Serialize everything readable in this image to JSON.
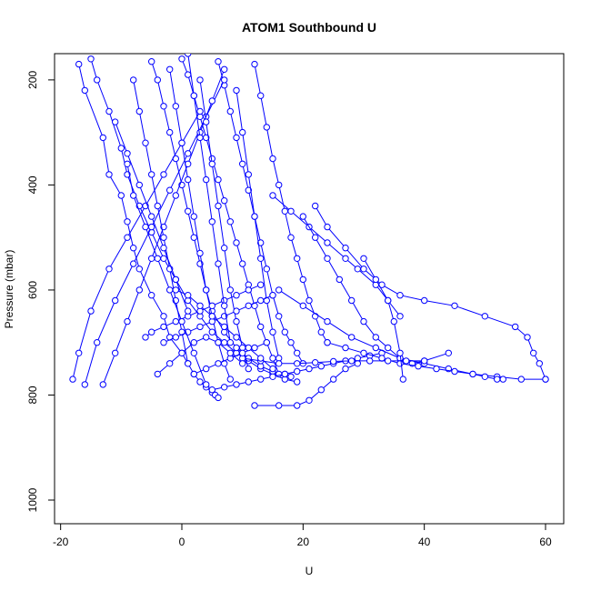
{
  "chart_data": {
    "type": "line",
    "title": "ATOM1 Southbound U",
    "xlabel": "U",
    "ylabel": "Pressure (mbar)",
    "xlim": [
      -21,
      63
    ],
    "ylim": [
      1045,
      150
    ],
    "y_reversed": true,
    "xticks": [
      -20,
      0,
      20,
      40,
      60
    ],
    "yticks": [
      200,
      400,
      600,
      800,
      1000
    ],
    "grid": false,
    "legend": "none",
    "line_color": "#0000ff",
    "marker": "open-circle",
    "series": [
      {
        "x": [
          -17,
          -16,
          -13,
          -12,
          -10,
          -9,
          -8,
          -7,
          -5,
          -3,
          -2,
          0,
          1,
          2,
          3,
          4,
          5,
          5.5,
          6
        ],
        "y": [
          170,
          220,
          310,
          380,
          420,
          470,
          520,
          560,
          610,
          650,
          690,
          720,
          740,
          760,
          775,
          785,
          795,
          800,
          805
        ]
      },
      {
        "x": [
          -15,
          -14,
          -12,
          -10,
          -9,
          -7,
          -5,
          -3,
          -1,
          1,
          3,
          5,
          7,
          9,
          11,
          13,
          15,
          17,
          19
        ],
        "y": [
          160,
          200,
          260,
          330,
          380,
          440,
          490,
          540,
          580,
          620,
          650,
          680,
          700,
          720,
          735,
          750,
          760,
          770,
          775
        ]
      },
      {
        "x": [
          -5,
          -4,
          -3,
          -2,
          -1,
          0,
          1,
          2,
          3,
          4,
          5,
          7,
          9,
          11,
          13,
          15,
          17,
          18
        ],
        "y": [
          165,
          200,
          250,
          300,
          350,
          400,
          450,
          500,
          550,
          600,
          640,
          680,
          710,
          730,
          745,
          755,
          760,
          765
        ]
      },
      {
        "x": [
          0,
          1,
          2,
          3,
          4,
          5,
          6,
          7,
          8,
          9,
          10,
          11,
          12,
          13,
          14,
          15,
          16
        ],
        "y": [
          160,
          190,
          230,
          270,
          310,
          350,
          390,
          430,
          470,
          510,
          550,
          590,
          630,
          670,
          700,
          730,
          760
        ]
      },
      {
        "x": [
          6,
          7,
          8,
          9,
          10,
          11,
          12,
          13,
          14,
          15,
          16,
          17,
          18,
          19,
          20
        ],
        "y": [
          165,
          210,
          260,
          310,
          360,
          410,
          460,
          510,
          560,
          610,
          650,
          680,
          700,
          720,
          740
        ]
      },
      {
        "x": [
          12,
          13,
          14,
          15,
          16,
          17,
          18,
          19,
          20,
          21,
          22,
          23,
          24
        ],
        "y": [
          170,
          230,
          290,
          350,
          400,
          450,
          500,
          540,
          580,
          620,
          650,
          680,
          700
        ]
      },
      {
        "x": [
          -18,
          -17,
          -15,
          -12,
          -9,
          -6,
          -3,
          0,
          3
        ],
        "y": [
          770,
          720,
          640,
          560,
          500,
          440,
          380,
          320,
          260
        ]
      },
      {
        "x": [
          -16,
          -14,
          -11,
          -8,
          -5,
          -2,
          1,
          4,
          7
        ],
        "y": [
          780,
          700,
          620,
          550,
          480,
          410,
          340,
          270,
          200
        ]
      },
      {
        "x": [
          -13,
          -11,
          -9,
          -7,
          -5,
          -3,
          -1,
          1,
          3,
          5,
          7
        ],
        "y": [
          780,
          720,
          660,
          600,
          540,
          480,
          420,
          360,
          300,
          240,
          180
        ]
      },
      {
        "x": [
          -8,
          -7,
          -6,
          -5,
          -4,
          -3,
          -2,
          -1,
          0,
          1
        ],
        "y": [
          200,
          260,
          320,
          380,
          440,
          500,
          560,
          620,
          680,
          740
        ]
      },
      {
        "x": [
          -2,
          -1,
          0,
          1,
          2,
          3,
          4,
          5,
          6,
          7,
          8
        ],
        "y": [
          180,
          250,
          320,
          390,
          460,
          530,
          600,
          650,
          700,
          740,
          770
        ]
      },
      {
        "x": [
          3,
          4,
          5,
          6,
          7,
          8,
          9,
          10,
          11
        ],
        "y": [
          200,
          280,
          360,
          440,
          520,
          600,
          660,
          710,
          750
        ]
      },
      {
        "x": [
          9,
          10,
          11,
          12,
          13,
          14,
          15,
          16
        ],
        "y": [
          220,
          300,
          380,
          460,
          540,
          620,
          680,
          730
        ]
      },
      {
        "x": [
          -6,
          -5,
          -3,
          -1,
          1,
          3,
          5,
          7,
          9,
          11,
          13
        ],
        "y": [
          690,
          680,
          670,
          660,
          650,
          640,
          630,
          620,
          610,
          600,
          590
        ]
      },
      {
        "x": [
          -3,
          -1,
          1,
          3,
          5,
          7,
          9,
          11,
          13,
          15
        ],
        "y": [
          700,
          690,
          680,
          670,
          660,
          650,
          640,
          630,
          620,
          610
        ]
      },
      {
        "x": [
          5,
          7,
          9,
          11,
          13,
          15,
          17,
          19,
          21,
          23,
          25,
          27,
          29,
          31,
          33
        ],
        "y": [
          790,
          785,
          780,
          775,
          770,
          765,
          760,
          755,
          750,
          745,
          740,
          735,
          730,
          725,
          720
        ]
      },
      {
        "x": [
          12,
          16,
          19,
          21,
          23,
          25,
          27,
          29
        ],
        "y": [
          820,
          820,
          820,
          810,
          790,
          770,
          750,
          740
        ]
      },
      {
        "x": [
          15,
          18,
          21,
          24,
          27,
          29,
          32,
          34,
          36
        ],
        "y": [
          420,
          450,
          480,
          510,
          540,
          560,
          590,
          620,
          650
        ]
      },
      {
        "x": [
          20,
          22,
          24,
          26,
          28,
          30,
          32,
          34,
          36,
          38,
          40,
          44
        ],
        "y": [
          460,
          500,
          540,
          580,
          620,
          660,
          690,
          710,
          730,
          740,
          735,
          720
        ]
      },
      {
        "x": [
          22,
          24,
          27,
          30,
          33,
          36,
          40,
          45,
          50,
          55,
          57,
          58,
          59,
          60
        ],
        "y": [
          440,
          480,
          520,
          560,
          590,
          610,
          620,
          630,
          650,
          670,
          690,
          720,
          740,
          770
        ]
      },
      {
        "x": [
          16,
          20,
          24,
          28,
          32,
          36,
          40,
          44,
          48,
          52,
          56,
          60
        ],
        "y": [
          600,
          630,
          660,
          690,
          710,
          730,
          740,
          750,
          760,
          765,
          770,
          770
        ]
      },
      {
        "x": [
          24,
          27,
          30,
          33,
          36,
          39,
          42,
          45,
          48,
          50,
          52,
          53
        ],
        "y": [
          700,
          710,
          720,
          730,
          740,
          745,
          750,
          755,
          760,
          765,
          770,
          770
        ]
      },
      {
        "x": [
          10,
          13,
          16,
          19,
          22,
          25,
          28,
          31,
          34,
          37,
          40
        ],
        "y": [
          730,
          735,
          740,
          740,
          738,
          736,
          735,
          735,
          735,
          735,
          735
        ]
      },
      {
        "x": [
          30,
          32,
          34,
          35,
          36,
          36.5
        ],
        "y": [
          540,
          580,
          620,
          660,
          720,
          770
        ]
      },
      {
        "x": [
          2,
          4,
          6,
          8,
          10,
          12,
          14
        ],
        "y": [
          760,
          750,
          740,
          730,
          720,
          710,
          700
        ]
      },
      {
        "x": [
          -4,
          -2,
          0,
          2,
          4,
          6,
          8,
          10
        ],
        "y": [
          760,
          740,
          720,
          700,
          690,
          700,
          720,
          740
        ]
      },
      {
        "x": [
          -1,
          1,
          3,
          5,
          7,
          9,
          11,
          13,
          15
        ],
        "y": [
          600,
          610,
          630,
          650,
          670,
          690,
          710,
          730,
          750
        ]
      },
      {
        "x": [
          -9,
          -8,
          -6,
          -4,
          -2,
          0,
          2,
          4
        ],
        "y": [
          360,
          420,
          480,
          540,
          600,
          660,
          720,
          780
        ]
      },
      {
        "x": [
          -11,
          -9,
          -7,
          -5,
          -3,
          -1,
          1
        ],
        "y": [
          280,
          340,
          400,
          460,
          520,
          580,
          640
        ]
      },
      {
        "x": [
          1,
          2,
          3,
          4,
          5,
          6,
          7,
          8
        ],
        "y": [
          150,
          230,
          310,
          390,
          470,
          550,
          630,
          700
        ]
      }
    ]
  }
}
